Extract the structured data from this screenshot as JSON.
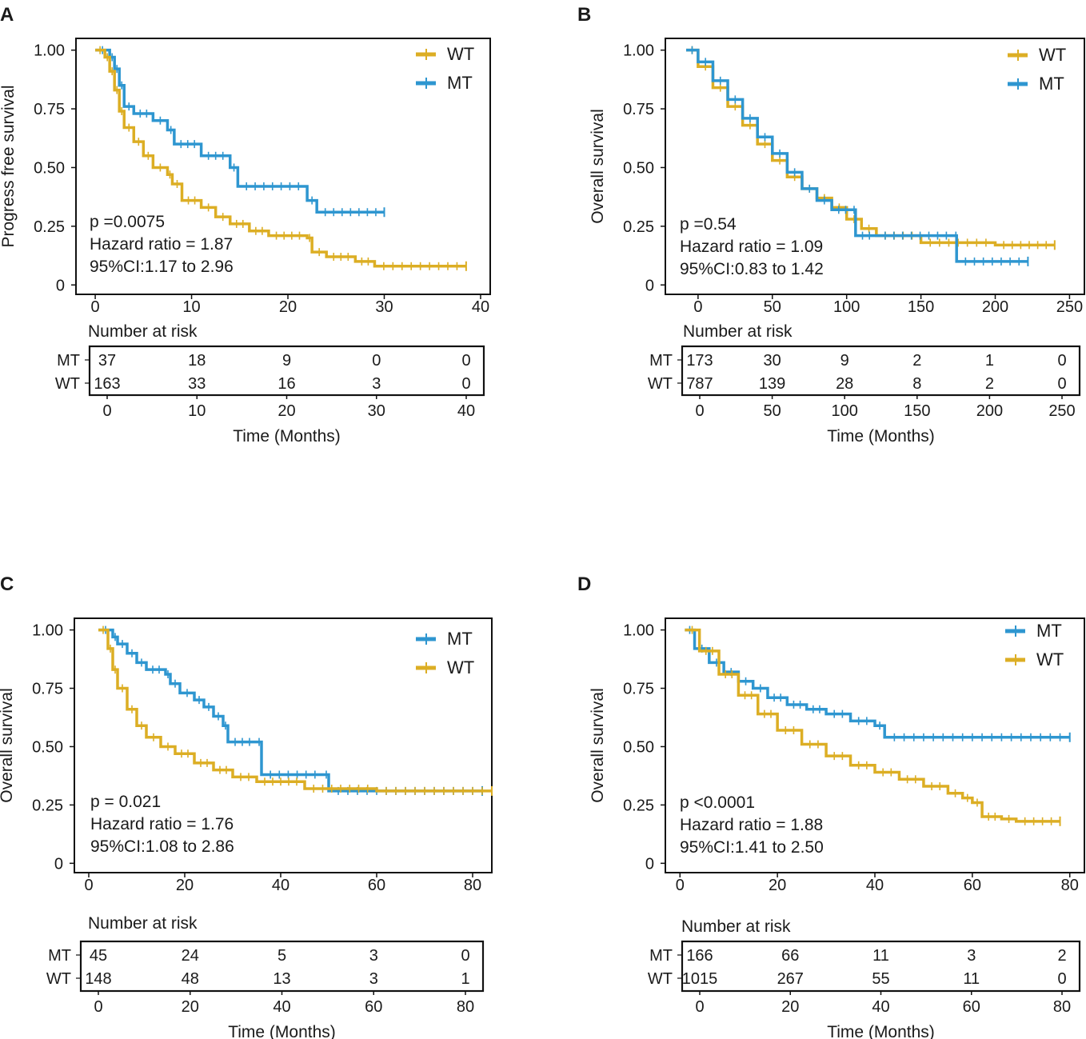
{
  "colors": {
    "WT": "#dcae24",
    "MT": "#2e96d0"
  },
  "risk_header": "Number at risk",
  "chart_data": [
    {
      "type": "line",
      "panel_label": "A",
      "ylabel": "Progress free survival",
      "xlabel": "Time (Months)",
      "xlim": [
        -2,
        41
      ],
      "ylim": [
        -0.04,
        1.05
      ],
      "xticks": [
        0,
        10,
        20,
        30,
        40
      ],
      "yticks": [
        0,
        0.25,
        0.5,
        0.75,
        1.0
      ],
      "ytick_labels": [
        "0",
        "0.25",
        "0.50",
        "0.75",
        "1.00"
      ],
      "legend_order": [
        "WT",
        "MT"
      ],
      "stats": [
        "p =0.0075",
        "Hazard ratio = 1.87",
        "95%CI:1.17 to 2.96"
      ],
      "series": [
        {
          "name": "MT",
          "x": [
            0,
            1.5,
            2.0,
            2.5,
            3.0,
            4.0,
            6.0,
            7.5,
            8.2,
            11.0,
            14.0,
            14.8,
            22.0,
            23.0,
            30.0
          ],
          "y": [
            1.0,
            0.97,
            0.92,
            0.85,
            0.76,
            0.73,
            0.7,
            0.66,
            0.6,
            0.55,
            0.5,
            0.42,
            0.36,
            0.31,
            0.31
          ]
        },
        {
          "name": "WT",
          "x": [
            0,
            1.0,
            1.5,
            2.0,
            2.5,
            3.0,
            4.0,
            5.0,
            6.0,
            7.5,
            8.0,
            9.0,
            11.0,
            12.5,
            14.0,
            16.0,
            18.0,
            22.0,
            22.5,
            24.0,
            27.0,
            29.0,
            38.5
          ],
          "y": [
            1.0,
            0.97,
            0.91,
            0.83,
            0.74,
            0.67,
            0.61,
            0.55,
            0.5,
            0.47,
            0.43,
            0.36,
            0.33,
            0.29,
            0.26,
            0.23,
            0.21,
            0.2,
            0.14,
            0.12,
            0.1,
            0.08,
            0.08
          ]
        }
      ],
      "risk_table": {
        "x_ticks": [
          0,
          10,
          20,
          30,
          40
        ],
        "rows": [
          {
            "label": "MT",
            "values": [
              "37",
              "18",
              "9",
              "0",
              "0"
            ]
          },
          {
            "label": "WT",
            "values": [
              "163",
              "33",
              "16",
              "3",
              "0"
            ]
          }
        ]
      }
    },
    {
      "type": "line",
      "panel_label": "B",
      "ylabel": "Overall survival",
      "xlabel": "Time (Months)",
      "xlim": [
        -22,
        260
      ],
      "ylim": [
        -0.04,
        1.05
      ],
      "xticks": [
        0,
        50,
        100,
        150,
        200,
        250
      ],
      "yticks": [
        0,
        0.25,
        0.5,
        0.75,
        1.0
      ],
      "ytick_labels": [
        "0",
        "0.25",
        "0.50",
        "0.75",
        "1.00"
      ],
      "legend_order": [
        "WT",
        "MT"
      ],
      "stats": [
        "p =0.54",
        "Hazard ratio = 1.09",
        "95%CI:0.83 to 1.42"
      ],
      "series": [
        {
          "name": "WT",
          "x": [
            -8,
            0,
            10,
            20,
            30,
            40,
            50,
            60,
            70,
            80,
            90,
            100,
            110,
            120,
            150,
            200,
            240
          ],
          "y": [
            1.0,
            0.93,
            0.84,
            0.76,
            0.68,
            0.6,
            0.53,
            0.46,
            0.41,
            0.37,
            0.33,
            0.28,
            0.24,
            0.21,
            0.18,
            0.17,
            0.17
          ]
        },
        {
          "name": "MT",
          "x": [
            -8,
            0,
            10,
            20,
            30,
            40,
            50,
            60,
            70,
            80,
            90,
            104,
            106,
            120,
            173,
            174,
            222
          ],
          "y": [
            1.0,
            0.95,
            0.87,
            0.79,
            0.71,
            0.63,
            0.56,
            0.48,
            0.41,
            0.36,
            0.32,
            0.32,
            0.21,
            0.21,
            0.21,
            0.1,
            0.1
          ]
        }
      ],
      "risk_table": {
        "x_ticks": [
          0,
          50,
          100,
          150,
          200,
          250
        ],
        "rows": [
          {
            "label": "MT",
            "values": [
              "173",
              "30",
              "9",
              "2",
              "1",
              "0"
            ]
          },
          {
            "label": "WT",
            "values": [
              "787",
              "139",
              "28",
              "8",
              "2",
              "0"
            ]
          }
        ]
      }
    },
    {
      "type": "line",
      "panel_label": "C",
      "ylabel": "Overall survival",
      "xlabel": "Time (Months)",
      "xlim": [
        -3,
        84
      ],
      "ylim": [
        -0.04,
        1.05
      ],
      "xticks": [
        0,
        20,
        40,
        60,
        80
      ],
      "yticks": [
        0,
        0.25,
        0.5,
        0.75,
        1.0
      ],
      "ytick_labels": [
        "0",
        "0.25",
        "0.50",
        "0.75",
        "1.00"
      ],
      "legend_order": [
        "MT",
        "WT"
      ],
      "stats": [
        "p = 0.021",
        "Hazard ratio = 1.76",
        "95%CI:1.08 to 2.86"
      ],
      "series": [
        {
          "name": "MT",
          "x": [
            2,
            5,
            6,
            8,
            10,
            12,
            16,
            17,
            19,
            22,
            24,
            26,
            28,
            29,
            35,
            36,
            49,
            50,
            82
          ],
          "y": [
            1.0,
            0.97,
            0.94,
            0.9,
            0.86,
            0.83,
            0.81,
            0.77,
            0.73,
            0.7,
            0.67,
            0.63,
            0.59,
            0.52,
            0.52,
            0.38,
            0.38,
            0.31,
            0.31
          ]
        },
        {
          "name": "WT",
          "x": [
            2,
            4,
            5,
            6,
            8,
            10,
            12,
            15,
            18,
            22,
            26,
            30,
            35,
            45,
            60,
            84
          ],
          "y": [
            1.0,
            0.92,
            0.83,
            0.75,
            0.66,
            0.59,
            0.54,
            0.5,
            0.47,
            0.43,
            0.4,
            0.37,
            0.35,
            0.32,
            0.31,
            0.31
          ]
        }
      ],
      "risk_table": {
        "x_ticks": [
          0,
          20,
          40,
          60,
          80
        ],
        "rows": [
          {
            "label": "MT",
            "values": [
              "45",
              "24",
              "5",
              "3",
              "0"
            ]
          },
          {
            "label": "WT",
            "values": [
              "148",
              "48",
              "13",
              "3",
              "1"
            ]
          }
        ]
      }
    },
    {
      "type": "line",
      "panel_label": "D",
      "ylabel": "Overall survival",
      "xlabel": "Time (Months)",
      "xlim": [
        -3,
        83
      ],
      "ylim": [
        -0.04,
        1.05
      ],
      "xticks": [
        0,
        20,
        40,
        60,
        80
      ],
      "yticks": [
        0,
        0.25,
        0.5,
        0.75,
        1.0
      ],
      "ytick_labels": [
        "0",
        "0.25",
        "0.50",
        "0.75",
        "1.00"
      ],
      "legend_order": [
        "MT",
        "WT"
      ],
      "stats": [
        "p <0.0001",
        "Hazard ratio = 1.88",
        "95%CI:1.41 to 2.50"
      ],
      "series": [
        {
          "name": "MT",
          "x": [
            1,
            3,
            6,
            9,
            12,
            15,
            18,
            22,
            26,
            30,
            35,
            40,
            42,
            80
          ],
          "y": [
            1.0,
            0.92,
            0.86,
            0.82,
            0.78,
            0.75,
            0.71,
            0.68,
            0.66,
            0.64,
            0.61,
            0.59,
            0.54,
            0.54
          ]
        },
        {
          "name": "WT",
          "x": [
            1,
            4,
            8,
            12,
            16,
            20,
            25,
            30,
            35,
            40,
            45,
            50,
            55,
            58,
            60,
            62,
            66,
            69,
            78
          ],
          "y": [
            1.0,
            0.91,
            0.81,
            0.72,
            0.64,
            0.57,
            0.51,
            0.46,
            0.42,
            0.39,
            0.36,
            0.33,
            0.3,
            0.28,
            0.26,
            0.2,
            0.19,
            0.18,
            0.18
          ]
        }
      ],
      "risk_table": {
        "x_ticks": [
          0,
          20,
          40,
          60,
          80
        ],
        "rows": [
          {
            "label": "MT",
            "values": [
              "166",
              "66",
              "11",
              "3",
              "2"
            ]
          },
          {
            "label": "WT",
            "values": [
              "1015",
              "267",
              "55",
              "11",
              "0"
            ]
          }
        ]
      }
    }
  ]
}
